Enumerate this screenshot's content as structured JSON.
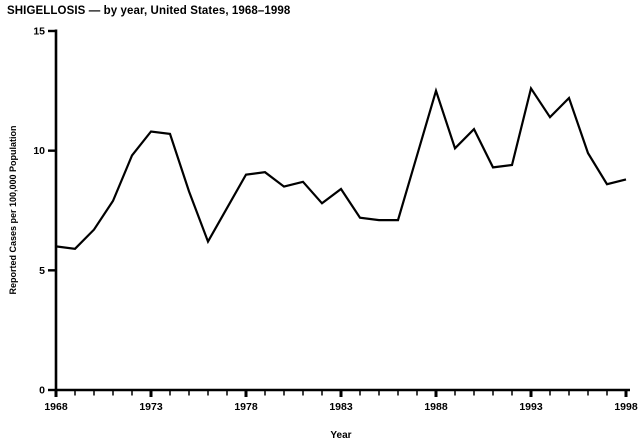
{
  "chart_data": {
    "type": "line",
    "title": "SHIGELLOSIS — by year, United States, 1968–1998",
    "xlabel": "Year",
    "ylabel": "Reported Cases per 100,000 Population",
    "x": [
      1968,
      1969,
      1970,
      1971,
      1972,
      1973,
      1974,
      1975,
      1976,
      1977,
      1978,
      1979,
      1980,
      1981,
      1982,
      1983,
      1984,
      1985,
      1986,
      1987,
      1988,
      1989,
      1990,
      1991,
      1992,
      1993,
      1994,
      1995,
      1996,
      1997,
      1998
    ],
    "values": [
      6.0,
      5.9,
      6.7,
      7.9,
      9.8,
      10.8,
      10.7,
      8.3,
      6.2,
      7.6,
      9.0,
      9.1,
      8.5,
      8.7,
      7.8,
      8.4,
      7.2,
      7.1,
      7.1,
      9.8,
      12.5,
      10.1,
      10.9,
      9.3,
      9.4,
      12.6,
      11.4,
      12.2,
      9.9,
      8.6,
      8.8
    ],
    "xlim": [
      1968,
      1998
    ],
    "ylim": [
      0,
      15
    ],
    "y_ticks": [
      0,
      5,
      10,
      15
    ],
    "x_tick_labels": [
      1968,
      1973,
      1978,
      1983,
      1988,
      1993,
      1998
    ],
    "minor_x_ticks_every": 1,
    "grid": false,
    "legend": null,
    "line_color": "#000000",
    "background_color": "#ffffff"
  }
}
